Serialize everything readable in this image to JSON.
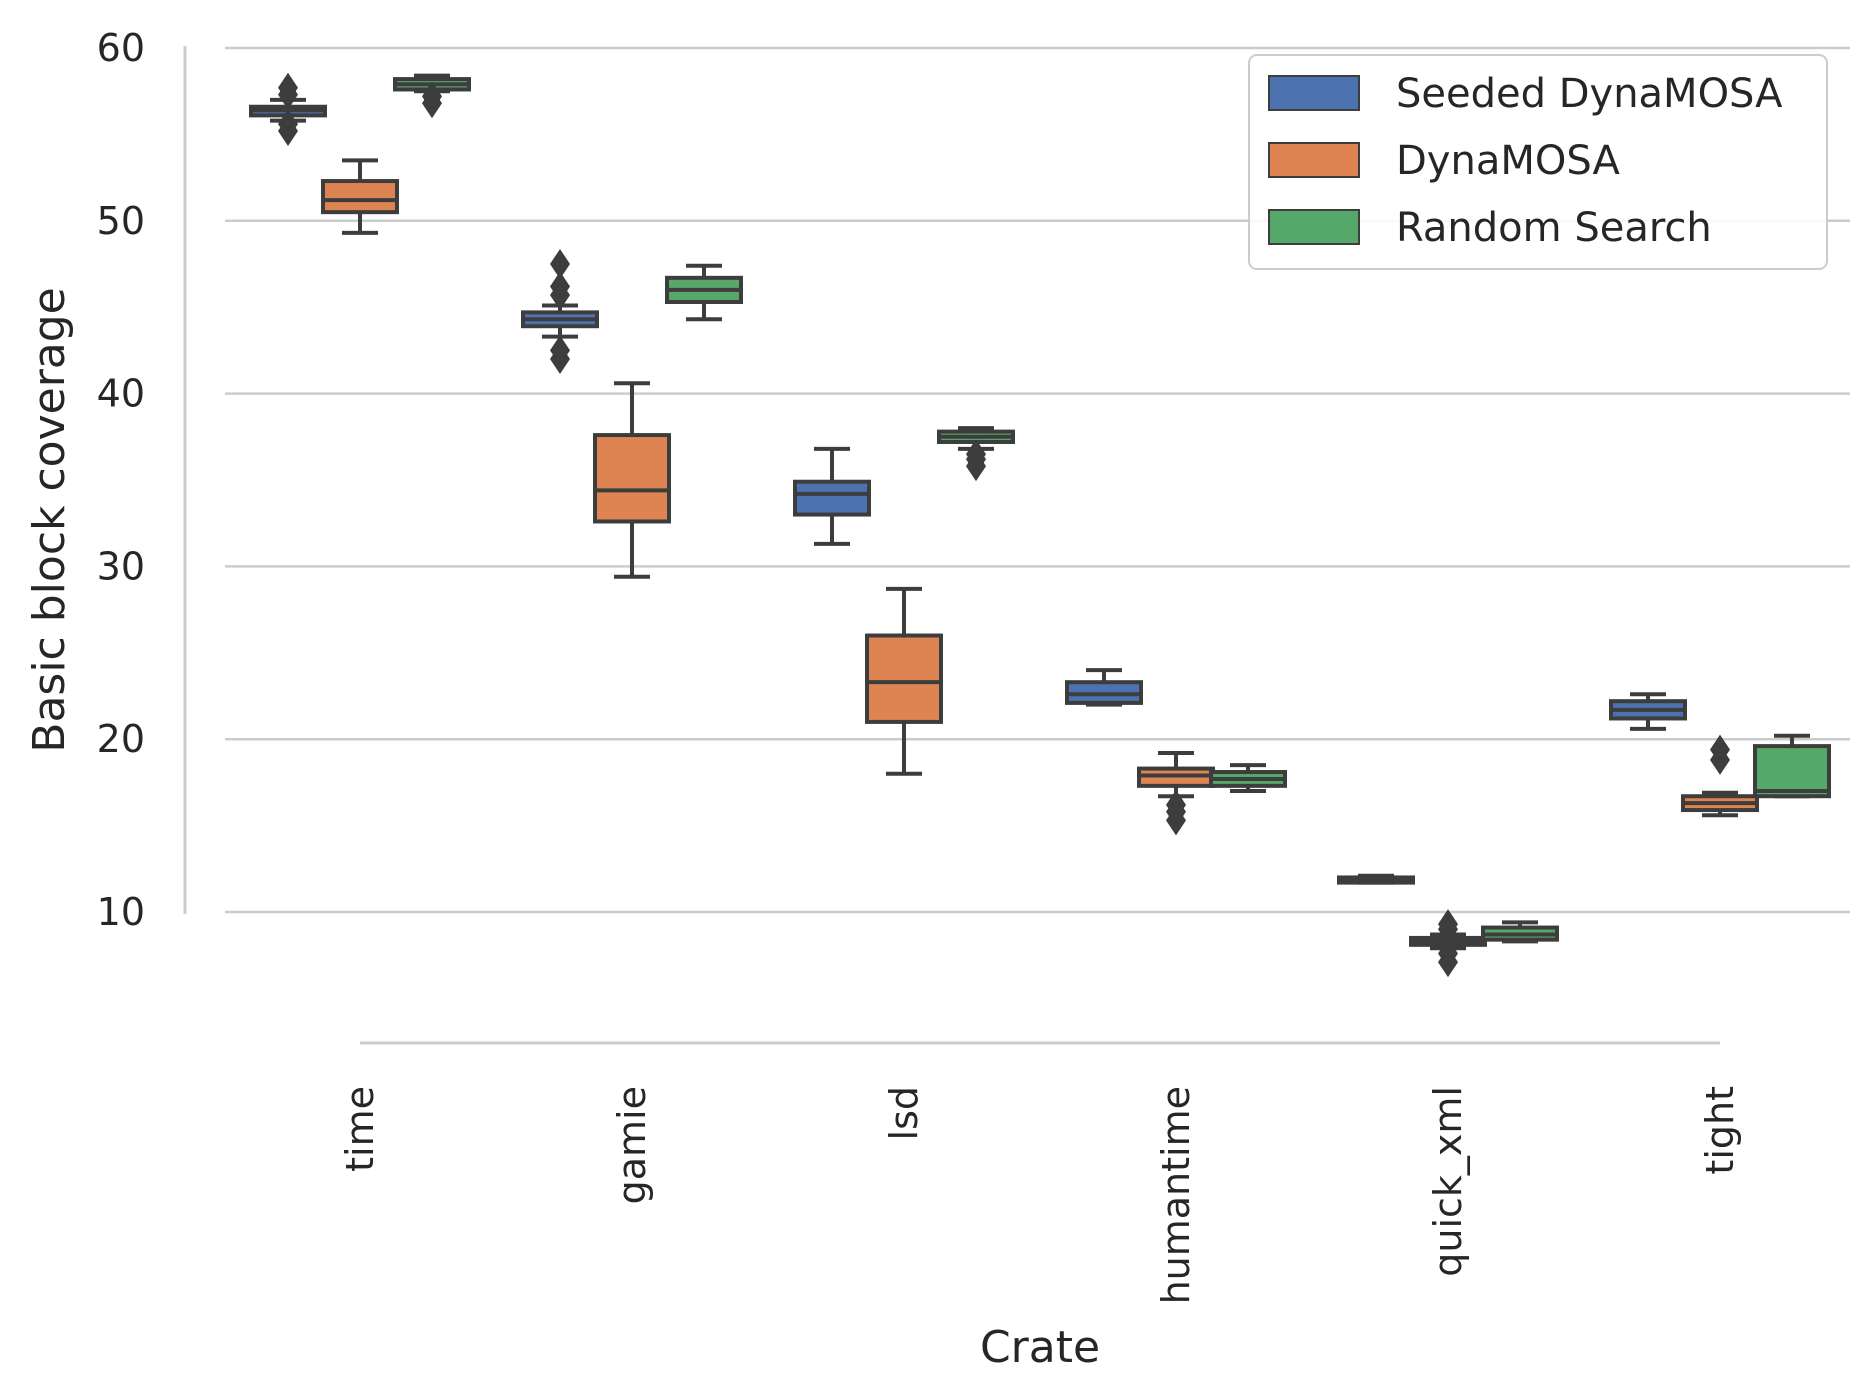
{
  "chart_data": {
    "type": "box",
    "title": "",
    "xlabel": "Crate",
    "ylabel": "Basic block coverage",
    "categories": [
      "time",
      "gamie",
      "lsd",
      "humantime",
      "quick_xml",
      "tight"
    ],
    "yticks": [
      "10",
      "20",
      "30",
      "40",
      "50",
      "60"
    ],
    "ylim": [
      3,
      61
    ],
    "grid": "horizontal",
    "legend_position": "top-right",
    "series": [
      {
        "name": "Seeded DynaMOSA",
        "color": "#4c72b0",
        "boxes": [
          {
            "whislo": 55.8,
            "q1": 56.1,
            "med": 56.4,
            "q3": 56.6,
            "whishi": 57.0,
            "fliers": [
              55.2,
              55.6,
              57.3,
              57.7
            ]
          },
          {
            "whislo": 43.3,
            "q1": 43.9,
            "med": 44.3,
            "q3": 44.7,
            "whishi": 45.1,
            "fliers": [
              42.0,
              42.5,
              45.7,
              46.2,
              47.5
            ]
          },
          {
            "whislo": 31.3,
            "q1": 33.0,
            "med": 34.2,
            "q3": 34.9,
            "whishi": 36.8,
            "fliers": []
          },
          {
            "whislo": 22.0,
            "q1": 22.1,
            "med": 22.6,
            "q3": 23.3,
            "whishi": 24.0,
            "fliers": []
          },
          {
            "whislo": 11.7,
            "q1": 11.7,
            "med": 11.9,
            "q3": 12.0,
            "whishi": 12.1,
            "fliers": []
          },
          {
            "whislo": 20.6,
            "q1": 21.2,
            "med": 21.7,
            "q3": 22.2,
            "whishi": 22.6,
            "fliers": []
          }
        ]
      },
      {
        "name": "DynaMOSA",
        "color": "#dd8452",
        "boxes": [
          {
            "whislo": 49.3,
            "q1": 50.5,
            "med": 51.2,
            "q3": 52.3,
            "whishi": 53.5,
            "fliers": []
          },
          {
            "whislo": 29.4,
            "q1": 32.6,
            "med": 34.4,
            "q3": 37.6,
            "whishi": 40.6,
            "fliers": []
          },
          {
            "whislo": 18.0,
            "q1": 21.0,
            "med": 23.3,
            "q3": 26.0,
            "whishi": 28.7,
            "fliers": []
          },
          {
            "whislo": 16.7,
            "q1": 17.3,
            "med": 17.9,
            "q3": 18.3,
            "whishi": 19.2,
            "fliers": [
              15.3,
              15.8,
              16.2
            ]
          },
          {
            "whislo": 7.9,
            "q1": 8.1,
            "med": 8.3,
            "q3": 8.5,
            "whishi": 8.7,
            "fliers": [
              7.1,
              7.6,
              9.0,
              9.3
            ]
          },
          {
            "whislo": 15.6,
            "q1": 15.9,
            "med": 16.3,
            "q3": 16.7,
            "whishi": 16.9,
            "fliers": [
              18.8,
              19.4
            ]
          }
        ]
      },
      {
        "name": "Random Search",
        "color": "#55a868",
        "boxes": [
          {
            "whislo": 57.5,
            "q1": 57.6,
            "med": 57.9,
            "q3": 58.2,
            "whishi": 58.4,
            "fliers": [
              56.8,
              57.2
            ]
          },
          {
            "whislo": 44.3,
            "q1": 45.3,
            "med": 46.0,
            "q3": 46.7,
            "whishi": 47.4,
            "fliers": []
          },
          {
            "whislo": 36.8,
            "q1": 37.2,
            "med": 37.5,
            "q3": 37.8,
            "whishi": 38.0,
            "fliers": [
              35.8,
              36.2,
              36.5
            ]
          },
          {
            "whislo": 17.0,
            "q1": 17.3,
            "med": 17.7,
            "q3": 18.1,
            "whishi": 18.5,
            "fliers": []
          },
          {
            "whislo": 8.3,
            "q1": 8.4,
            "med": 8.7,
            "q3": 9.1,
            "whishi": 9.4,
            "fliers": []
          },
          {
            "whislo": 16.7,
            "q1": 16.7,
            "med": 17.0,
            "q3": 19.6,
            "whishi": 20.2,
            "fliers": []
          }
        ]
      }
    ]
  }
}
